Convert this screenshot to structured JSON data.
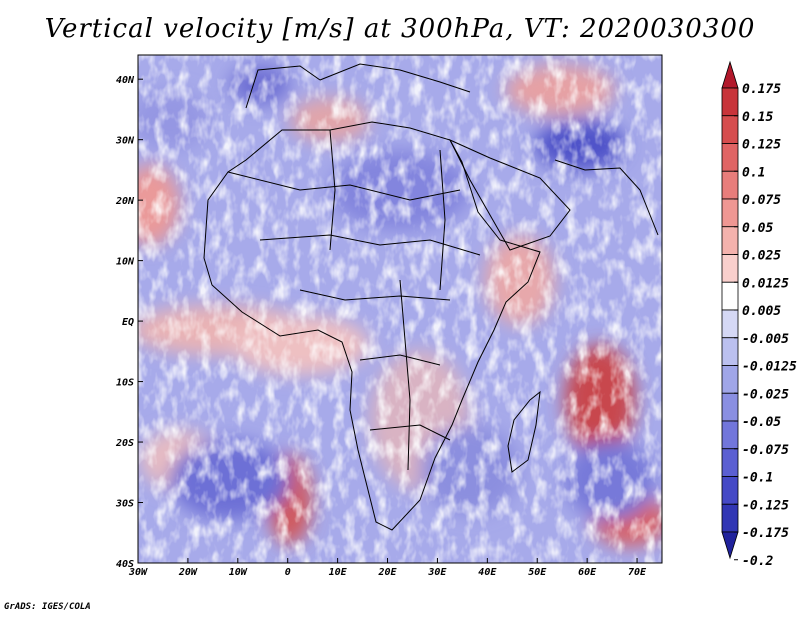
{
  "chart_data": {
    "type": "heatmap",
    "title": "Vertical velocity [m/s] at 300hPa, VT: 2020030300",
    "variable": "Vertical velocity",
    "units": "m/s",
    "level": "300hPa",
    "valid_time": "2020030300",
    "x_ticks": [
      "30W",
      "20W",
      "10W",
      "0",
      "10E",
      "20E",
      "30E",
      "40E",
      "50E",
      "60E",
      "70E"
    ],
    "x_values": [
      -30,
      -20,
      -10,
      0,
      10,
      20,
      30,
      40,
      50,
      60,
      70
    ],
    "y_ticks": [
      "40N",
      "30N",
      "20N",
      "10N",
      "EQ",
      "10S",
      "20S",
      "30S",
      "40S"
    ],
    "y_values": [
      40,
      30,
      20,
      10,
      0,
      -10,
      -20,
      -30,
      -40
    ],
    "xlim": [
      -30,
      75
    ],
    "ylim": [
      -40,
      44
    ],
    "colorbar": {
      "labels": [
        "0.175",
        "0.15",
        "0.125",
        "0.1",
        "0.075",
        "0.05",
        "0.025",
        "0.0125",
        "0.005",
        "-0.005",
        "-0.0125",
        "-0.025",
        "-0.05",
        "-0.075",
        "-0.1",
        "-0.125",
        "-0.175",
        "-0.2"
      ],
      "colors": [
        "#b2182b",
        "#c8343a",
        "#d64d4e",
        "#e06464",
        "#e87d7b",
        "#ef9793",
        "#f4b2ad",
        "#f9cfcc",
        "#ffffff",
        "#d5d8f5",
        "#bbc0ef",
        "#a0a6e8",
        "#8a8fe2",
        "#7276db",
        "#5b5fd2",
        "#4549c6",
        "#3136b4",
        "#20229c"
      ]
    },
    "annotations": [
      "GrADS: IGES/COLA"
    ]
  }
}
